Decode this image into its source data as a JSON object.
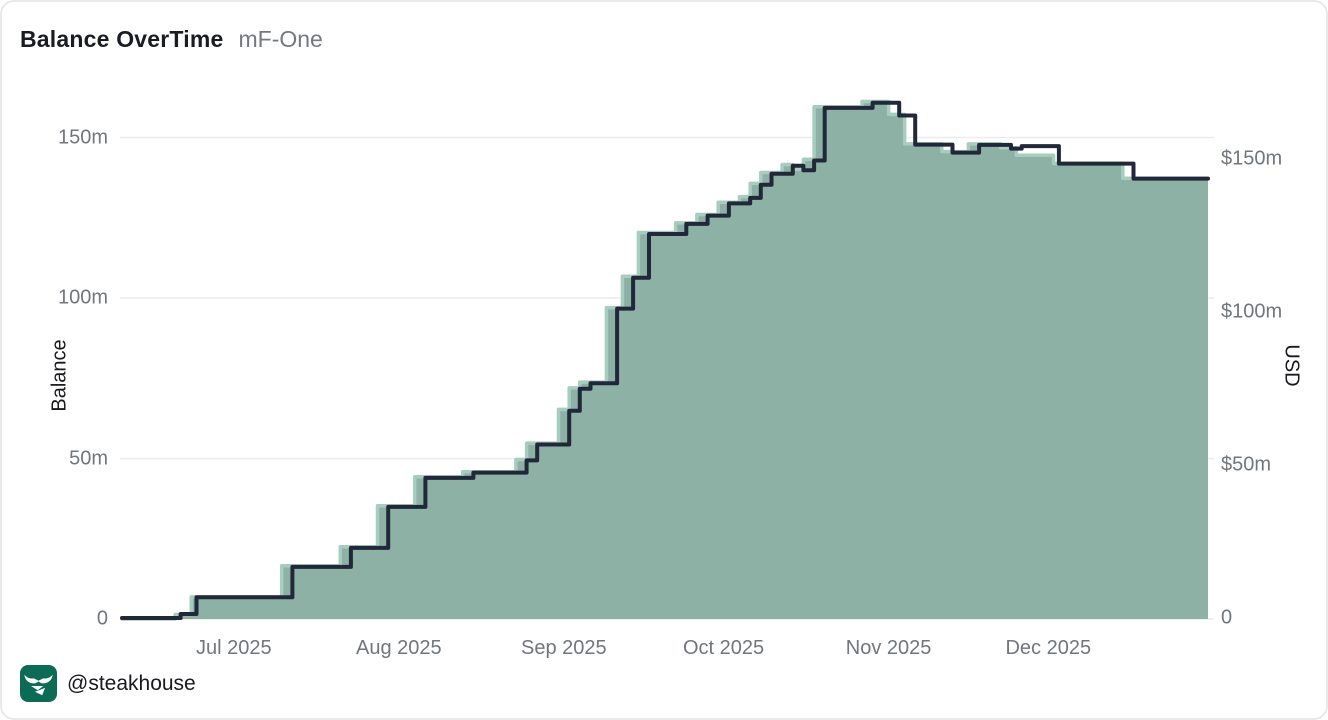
{
  "title": {
    "text": "Balance OverTime",
    "tag": "mF-One"
  },
  "footer": {
    "handle": "@steakhouse",
    "icon": "steakhouse-bull-icon"
  },
  "colors": {
    "card_border": "#e7e9ec",
    "grid": "#ececec",
    "fill_area": "#8db1a4",
    "balance_line": "#a7cdbf",
    "usd_line": "#20283a",
    "tick_text": "#71767d",
    "icon_bg": "#0c6b54"
  },
  "chart_data": {
    "type": "area",
    "step": true,
    "title": "Balance OverTime",
    "subtitle": "mF-One",
    "grid": true,
    "legend": "none",
    "x_axis": {
      "start": "2025-06-10",
      "end": "2025-12-31",
      "ticks": [
        {
          "label": "Jul 2025",
          "date": "2025-07-01"
        },
        {
          "label": "Aug 2025",
          "date": "2025-08-01"
        },
        {
          "label": "Sep 2025",
          "date": "2025-09-01"
        },
        {
          "label": "Oct 2025",
          "date": "2025-10-01"
        },
        {
          "label": "Nov 2025",
          "date": "2025-11-01"
        },
        {
          "label": "Dec 2025",
          "date": "2025-12-01"
        }
      ]
    },
    "y_left": {
      "label": "Balance",
      "unit": "millions",
      "range": [
        0,
        155
      ],
      "ticks": [
        {
          "value": 0,
          "label": "0"
        },
        {
          "value": 50,
          "label": "50m"
        },
        {
          "value": 100,
          "label": "100m"
        },
        {
          "value": 150,
          "label": "150m"
        }
      ]
    },
    "y_right": {
      "label": "USD",
      "unit": "millions USD",
      "range": [
        0,
        163
      ],
      "ticks": [
        {
          "value": 0,
          "label": "0"
        },
        {
          "value": 50,
          "label": "$50m"
        },
        {
          "value": 100,
          "label": "$100m"
        },
        {
          "value": 150,
          "label": "$150m"
        }
      ]
    },
    "series": [
      {
        "name": "Balance",
        "axis": "left",
        "role": "area",
        "line_color": "#a7cdbf",
        "fill_color": "#8db1a4",
        "points": [
          [
            "2025-06-10",
            0
          ],
          [
            "2025-06-20",
            1.4
          ],
          [
            "2025-06-23",
            6.9
          ],
          [
            "2025-07-10",
            16.6
          ],
          [
            "2025-07-21",
            22.5
          ],
          [
            "2025-07-28",
            35.3
          ],
          [
            "2025-08-04",
            44.3
          ],
          [
            "2025-08-13",
            45.9
          ],
          [
            "2025-08-23",
            49.7
          ],
          [
            "2025-08-25",
            54.8
          ],
          [
            "2025-08-31",
            65.3
          ],
          [
            "2025-09-02",
            72.0
          ],
          [
            "2025-09-04",
            73.8
          ],
          [
            "2025-09-09",
            97.0
          ],
          [
            "2025-09-12",
            106.8
          ],
          [
            "2025-09-15",
            120.4
          ],
          [
            "2025-09-22",
            123.4
          ],
          [
            "2025-09-26",
            126.0
          ],
          [
            "2025-09-30",
            129.8
          ],
          [
            "2025-10-04",
            131.6
          ],
          [
            "2025-10-06",
            135.7
          ],
          [
            "2025-10-08",
            139.1
          ],
          [
            "2025-10-12",
            141.6
          ],
          [
            "2025-10-14",
            140.1
          ],
          [
            "2025-10-16",
            143.2
          ],
          [
            "2025-10-18",
            159.6
          ],
          [
            "2025-10-27",
            161.2
          ],
          [
            "2025-11-01",
            157.2
          ],
          [
            "2025-11-04",
            148.0
          ],
          [
            "2025-11-11",
            145.6
          ],
          [
            "2025-11-16",
            148.0
          ],
          [
            "2025-11-22",
            146.8
          ],
          [
            "2025-11-25",
            144.5
          ],
          [
            "2025-12-02",
            141.9
          ],
          [
            "2025-12-15",
            137.3
          ],
          [
            "2025-12-31",
            137.3
          ]
        ]
      },
      {
        "name": "USD",
        "axis": "right",
        "role": "line",
        "line_color": "#20283a",
        "points": [
          [
            "2025-06-10",
            0
          ],
          [
            "2025-06-21",
            1.3
          ],
          [
            "2025-06-24",
            6.8
          ],
          [
            "2025-07-12",
            16.7
          ],
          [
            "2025-07-23",
            22.9
          ],
          [
            "2025-07-30",
            36.3
          ],
          [
            "2025-08-06",
            45.8
          ],
          [
            "2025-08-15",
            47.5
          ],
          [
            "2025-08-25",
            51.5
          ],
          [
            "2025-08-27",
            56.7
          ],
          [
            "2025-09-02",
            67.7
          ],
          [
            "2025-09-04",
            74.9
          ],
          [
            "2025-09-06",
            76.7
          ],
          [
            "2025-09-11",
            101.1
          ],
          [
            "2025-09-14",
            111.2
          ],
          [
            "2025-09-17",
            125.5
          ],
          [
            "2025-09-24",
            128.8
          ],
          [
            "2025-09-28",
            131.5
          ],
          [
            "2025-10-02",
            135.5
          ],
          [
            "2025-10-06",
            137.3
          ],
          [
            "2025-10-08",
            141.6
          ],
          [
            "2025-10-10",
            145.2
          ],
          [
            "2025-10-14",
            147.8
          ],
          [
            "2025-10-16",
            146.3
          ],
          [
            "2025-10-18",
            149.5
          ],
          [
            "2025-10-20",
            166.7
          ],
          [
            "2025-10-29",
            168.4
          ],
          [
            "2025-11-03",
            164.2
          ],
          [
            "2025-11-06",
            154.7
          ],
          [
            "2025-11-13",
            152.1
          ],
          [
            "2025-11-18",
            154.6
          ],
          [
            "2025-11-24",
            153.4
          ],
          [
            "2025-11-26",
            154.2
          ],
          [
            "2025-12-03",
            148.5
          ],
          [
            "2025-12-17",
            143.6
          ],
          [
            "2025-12-31",
            143.6
          ]
        ]
      }
    ]
  }
}
